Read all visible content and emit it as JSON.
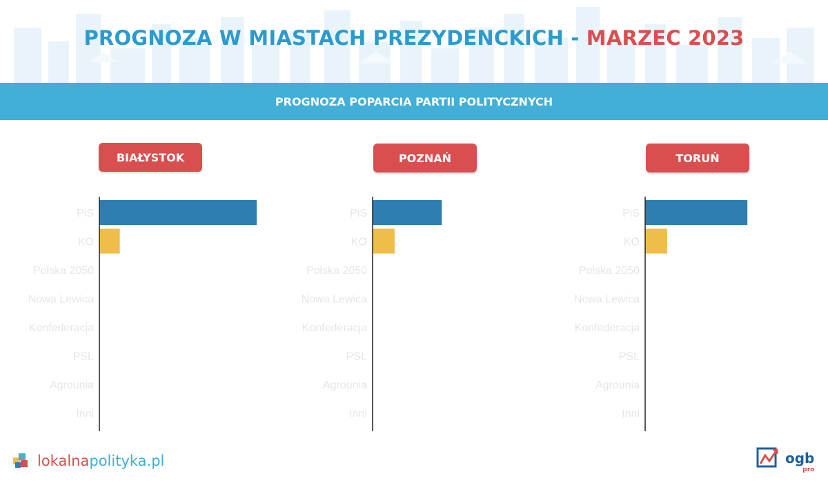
{
  "header": {
    "title_main": "PROGNOZA W MIASTACH PREZYDENCKICH - ",
    "title_accent": "MARZEC 2023",
    "subtitle": "PROGNOZA POPARCIA PARTII POLITYCZNYCH"
  },
  "colors": {
    "title_blue": "#2b9bcf",
    "accent_red": "#d94f4f",
    "band_blue": "#41afd6",
    "pis_bar": "#2f7eb0",
    "ko_bar": "#f0bd4a"
  },
  "chart_data": [
    {
      "type": "bar",
      "orientation": "horizontal",
      "title": "BIAŁYSTOK",
      "categories": [
        "PiS",
        "KO",
        "Polska 2050",
        "Nowa Lewica",
        "Konfederacja",
        "PSL",
        "Agrounia",
        "Inni"
      ],
      "values": [
        100,
        13,
        0,
        0,
        0,
        0,
        0,
        0
      ],
      "xlim": [
        0,
        100
      ]
    },
    {
      "type": "bar",
      "orientation": "horizontal",
      "title": "POZNAŃ",
      "categories": [
        "PiS",
        "KO",
        "Polska 2050",
        "Nowa Lewica",
        "Konfederacja",
        "PSL",
        "Agrounia",
        "Inni"
      ],
      "values": [
        44,
        14,
        0,
        0,
        0,
        0,
        0,
        0
      ],
      "xlim": [
        0,
        100
      ]
    },
    {
      "type": "bar",
      "orientation": "horizontal",
      "title": "TORUŃ",
      "categories": [
        "PiS",
        "KO",
        "Polska 2050",
        "Nowa Lewica",
        "Konfederacja",
        "PSL",
        "Agrounia",
        "Inni"
      ],
      "values": [
        65,
        14,
        0,
        0,
        0,
        0,
        0,
        0
      ],
      "xlim": [
        0,
        100
      ]
    }
  ],
  "footer": {
    "left_logo_a": "lokalna",
    "left_logo_b": "polityka.pl",
    "right_logo": "ogb",
    "right_logo_sub": "pro"
  }
}
